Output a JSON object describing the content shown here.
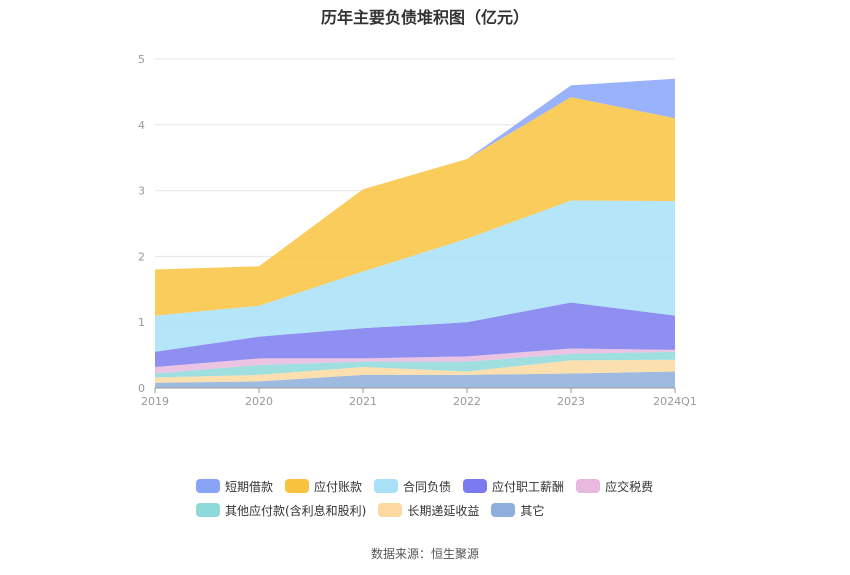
{
  "chart_data": {
    "type": "area",
    "title": "历年主要负债堆积图（亿元）",
    "x": [
      "2019",
      "2020",
      "2021",
      "2022",
      "2023",
      "2024Q1"
    ],
    "ylim": [
      0,
      5
    ],
    "yticks": [
      0,
      1,
      2,
      3,
      4,
      5
    ],
    "grid": true,
    "stacked": true,
    "legend_position": "bottom",
    "series": [
      {
        "name": "其它",
        "color": "#8eaedc",
        "values": [
          0.08,
          0.1,
          0.2,
          0.2,
          0.22,
          0.25
        ]
      },
      {
        "name": "长期递延收益",
        "color": "#fcd9a0",
        "values": [
          0.08,
          0.1,
          0.12,
          0.05,
          0.2,
          0.18
        ]
      },
      {
        "name": "其他应付款(含利息和股利)",
        "color": "#8ed9d9",
        "values": [
          0.06,
          0.15,
          0.08,
          0.15,
          0.1,
          0.12
        ]
      },
      {
        "name": "应交税费",
        "color": "#e8b8de",
        "values": [
          0.1,
          0.1,
          0.05,
          0.08,
          0.08,
          0.03
        ]
      },
      {
        "name": "应付职工薪酬",
        "color": "#7b7bef",
        "values": [
          0.23,
          0.33,
          0.46,
          0.52,
          0.7,
          0.52
        ]
      },
      {
        "name": "合同负债",
        "color": "#a8e0f8",
        "values": [
          0.55,
          0.47,
          0.86,
          1.27,
          1.55,
          1.74
        ]
      },
      {
        "name": "应付账款",
        "color": "#f9c33f",
        "values": [
          0.7,
          0.6,
          1.25,
          1.21,
          1.57,
          1.26
        ]
      },
      {
        "name": "短期借款",
        "color": "#88a4f8",
        "values": [
          0,
          0,
          0,
          0,
          0.18,
          0.6
        ]
      }
    ],
    "legend_order": [
      "短期借款",
      "应付账款",
      "合同负债",
      "应付职工薪酬",
      "应交税费",
      "其他应付款(含利息和股利)",
      "长期递延收益",
      "其它"
    ],
    "source": "数据来源：恒生聚源"
  }
}
